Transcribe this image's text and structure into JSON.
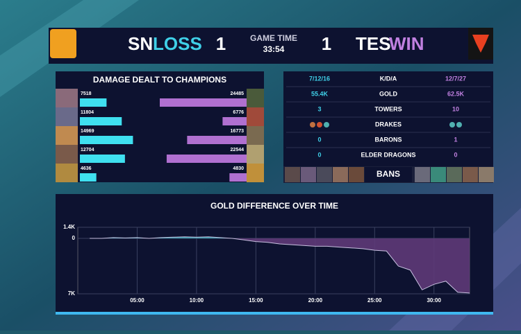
{
  "header": {
    "left_team": "SN",
    "left_result": "LOSS",
    "left_score": 1,
    "game_time_label": "GAME TIME",
    "game_time": "33:54",
    "right_score": 1,
    "right_team": "TES",
    "right_result": "WIN"
  },
  "damage": {
    "title": "DAMAGE DEALT TO CHAMPIONS",
    "left": [
      7518,
      11804,
      14969,
      12704,
      4636
    ],
    "right": [
      24485,
      6776,
      16773,
      22544,
      4830
    ],
    "left_color": "#3fe0f0",
    "right_color": "#b070d0"
  },
  "stats": {
    "rows": [
      {
        "left": "7/12/16",
        "label": "K/D/A",
        "right": "12/7/27"
      },
      {
        "left": "55.4K",
        "label": "GOLD",
        "right": "62.5K"
      },
      {
        "left": 3,
        "label": "TOWERS",
        "right": 10
      },
      {
        "label": "DRAKES"
      },
      {
        "left": 0,
        "label": "BARONS",
        "right": 1
      },
      {
        "left": 0,
        "label": "ELDER DRAGONS",
        "right": 0
      }
    ],
    "bans_label": "BANS"
  },
  "gold_chart": {
    "type": "area",
    "title": "GOLD DIFFERENCE OVER TIME",
    "x": [
      1,
      2,
      3,
      4,
      5,
      6,
      7,
      8,
      9,
      10,
      11,
      12,
      13,
      14,
      15,
      16,
      17,
      18,
      19,
      20,
      21,
      22,
      23,
      24,
      25,
      26,
      27,
      28,
      29,
      30,
      31,
      32,
      33
    ],
    "values": [
      0,
      0,
      100,
      50,
      100,
      0,
      100,
      150,
      200,
      150,
      200,
      100,
      0,
      -200,
      -400,
      -500,
      -700,
      -800,
      -900,
      -1000,
      -1000,
      -1100,
      -1200,
      -1300,
      -1500,
      -1600,
      -3500,
      -4000,
      -6500,
      -5800,
      -5400,
      -6800,
      -6900
    ],
    "xlim": [
      0,
      33
    ],
    "ylim": [
      -7000,
      1400
    ],
    "yticks": [
      {
        "value": 1400,
        "label": "1.4K"
      },
      0,
      {
        "value": -7000,
        "label": "7K"
      }
    ],
    "xticks": [
      {
        "value": 5,
        "label": "05:00"
      },
      {
        "value": 10,
        "label": "10:00"
      },
      {
        "value": 15,
        "label": "15:00"
      },
      {
        "value": 20,
        "label": "20:00"
      },
      {
        "value": 25,
        "label": "25:00"
      },
      {
        "value": 30,
        "label": "30:00"
      }
    ],
    "positive_color": "#3fb8c8",
    "negative_color": "#5e3a78"
  }
}
